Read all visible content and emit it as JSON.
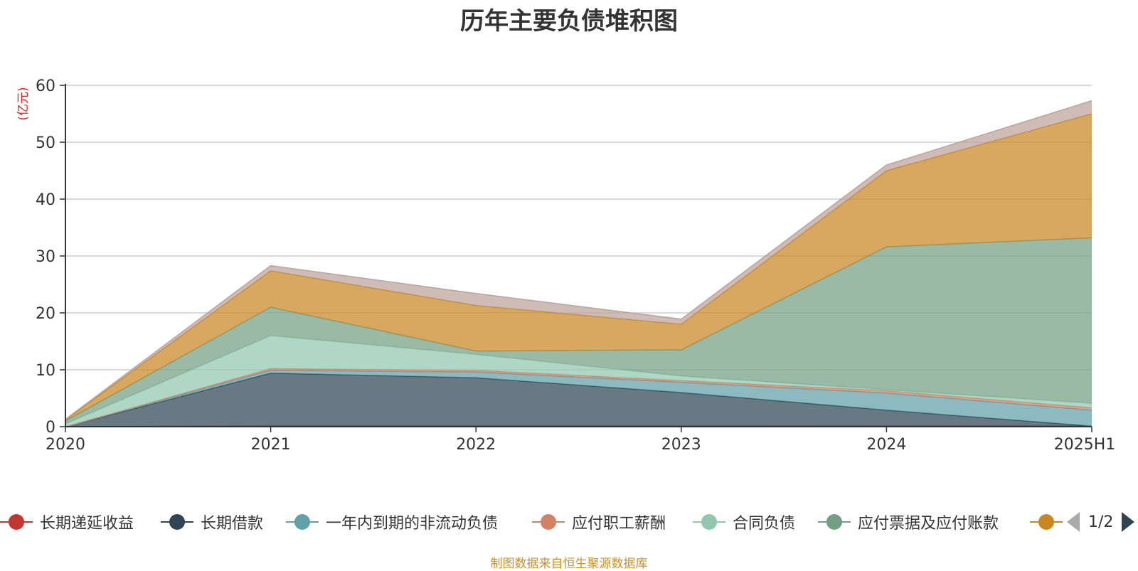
{
  "chart_data": {
    "type": "area",
    "stacked": true,
    "title": "历年主要负债堆积图",
    "unit_label": "(亿元)",
    "x": [
      "2020",
      "2021",
      "2022",
      "2023",
      "2024",
      "2025H1"
    ],
    "yticks": [
      "0",
      "10",
      "20",
      "30",
      "40",
      "50",
      "60"
    ],
    "ylim": [
      0,
      60
    ],
    "grid": true,
    "legend_position": "bottom",
    "series": [
      {
        "name": "长期递延收益",
        "color": "#c23531",
        "values": [
          0,
          0.1,
          0.1,
          0.1,
          0.1,
          0.1
        ]
      },
      {
        "name": "长期借款",
        "color": "#2f4554",
        "values": [
          0,
          9.3,
          8.5,
          5.9,
          2.8,
          0
        ]
      },
      {
        "name": "一年内到期的非流动负债",
        "color": "#61a0a8",
        "values": [
          0,
          0.5,
          1.0,
          1.8,
          3.0,
          2.8
        ]
      },
      {
        "name": "应付职工薪酬",
        "color": "#d48265",
        "values": [
          0,
          0.3,
          0.3,
          0.3,
          0.4,
          0.4
        ]
      },
      {
        "name": "合同负债",
        "color": "#91c7ae",
        "values": [
          0.5,
          5.8,
          2.8,
          0.8,
          0.2,
          0.8
        ]
      },
      {
        "name": "应付票据及应付账款",
        "color": "#749f83",
        "values": [
          0.5,
          5.0,
          0.6,
          4.6,
          25.1,
          29.1
        ]
      },
      {
        "name": "",
        "color": "#ca8622",
        "values": [
          0.2,
          6.4,
          8.0,
          4.5,
          13.4,
          21.8
        ]
      },
      {
        "name": "",
        "color": "#bda29a",
        "values": [
          0.1,
          0.9,
          2.1,
          0.9,
          1.0,
          2.3
        ]
      }
    ]
  },
  "legend": {
    "page_text": "1/2"
  },
  "source_text": "制图数据来自恒生聚源数据库"
}
